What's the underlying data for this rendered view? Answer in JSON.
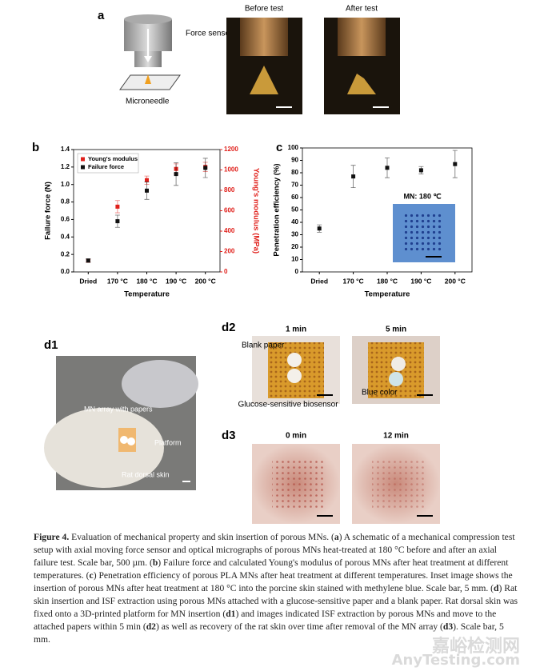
{
  "panel_a": {
    "label": "a",
    "sensor": "Force sensor",
    "needle": "Microneedle",
    "before": "Before test",
    "after": "After test"
  },
  "chart_data": [
    {
      "type": "scatter",
      "label": "b",
      "categories": [
        "Dried",
        "170 °C",
        "180 °C",
        "190 °C",
        "200 °C"
      ],
      "x_label": "Temperature",
      "y_label": "Failure force (N)",
      "y2_label": "Young's modulus (MPa)",
      "ylim": [
        0,
        1.4
      ],
      "yticks": [
        {
          "value": 0,
          "label": "0.0"
        },
        0.2,
        0.4,
        0.6,
        0.8,
        {
          "value": 1,
          "label": "1.0"
        },
        1.2,
        1.4
      ],
      "y2lim": [
        0,
        1200
      ],
      "y2ticks": [
        0,
        200,
        400,
        600,
        800,
        1000,
        1200
      ],
      "legend": "upper left",
      "series": [
        {
          "name": "Young's modulus",
          "color": "#e0201b",
          "axis": "y2",
          "values": [
            110,
            640,
            900,
            1010,
            1030
          ],
          "errors": [
            15,
            60,
            40,
            50,
            45
          ]
        },
        {
          "name": "Failure force",
          "color": "#111111",
          "values": [
            0.13,
            0.58,
            0.93,
            1.12,
            1.19
          ],
          "errors": [
            0.02,
            0.07,
            0.1,
            0.13,
            0.11
          ]
        }
      ]
    },
    {
      "type": "scatter",
      "label": "c",
      "categories": [
        "Dried",
        "170 °C",
        "180 °C",
        "190 °C",
        "200 °C"
      ],
      "x_label": "Temperature",
      "y_label": "Penetration efficiency (%)",
      "inset_label": "MN: 180 ℃",
      "ylim": [
        0,
        100
      ],
      "yticks": [
        0,
        10,
        20,
        30,
        40,
        50,
        60,
        70,
        80,
        90,
        100
      ],
      "series": [
        {
          "color": "#111111",
          "values": [
            35,
            77,
            84,
            82,
            87
          ],
          "errors": [
            3,
            9,
            8,
            3,
            11
          ]
        }
      ]
    }
  ],
  "panel_d": {
    "d1": "d1",
    "d2": "d2",
    "d3": "d3",
    "mn_array": "MN array with papers",
    "platform": "Platform",
    "rat_skin": "Rat dorsal skin",
    "t1": "1 min",
    "t5": "5 min",
    "blank": "Blank paper",
    "glucose": "Glucose-sensitive biosensor",
    "blue": "Blue color",
    "t0": "0 min",
    "t12": "12 min"
  },
  "caption": [
    {
      "text": "Figure 4.",
      "bold": true
    },
    {
      "text": "  Evaluation of mechanical property and skin insertion of porous MNs. (",
      "bold": false
    },
    {
      "text": "a",
      "bold": true
    },
    {
      "text": ") A schematic of a mechanical compression test setup with axial moving force sensor and optical micrographs of porous MNs heat-treated at 180 °C before and after an axial failure test. Scale bar, 500 µm. (",
      "bold": false
    },
    {
      "text": "b",
      "bold": true
    },
    {
      "text": ") Failure force and calculated Young's modulus of porous MNs after heat treatment at different temperatures. (",
      "bold": false
    },
    {
      "text": "c",
      "bold": true
    },
    {
      "text": ") Penetration efficiency of porous PLA MNs after heat treatment at different temperatures. Inset image shows the insertion of porous MNs after heat treatment at 180 °C into the porcine skin stained with methylene blue. Scale bar, 5 mm. (",
      "bold": false
    },
    {
      "text": "d",
      "bold": true
    },
    {
      "text": ") Rat skin insertion and ISF extraction using porous MNs attached with a glucose-sensitive paper and a blank paper. Rat dorsal skin was fixed onto a 3D-printed platform for MN insertion (",
      "bold": false
    },
    {
      "text": "d1",
      "bold": true
    },
    {
      "text": ") and images indicated ISF extraction by porous MNs and move to the attached papers within 5 min (",
      "bold": false
    },
    {
      "text": "d2",
      "bold": true
    },
    {
      "text": ") as well as recovery of the rat skin over time after removal of the MN array (",
      "bold": false
    },
    {
      "text": "d3",
      "bold": true
    },
    {
      "text": "). Scale bar, 5 mm.",
      "bold": false
    }
  ],
  "watermark": [
    "嘉峪检测网",
    "AnyTesting.com"
  ]
}
